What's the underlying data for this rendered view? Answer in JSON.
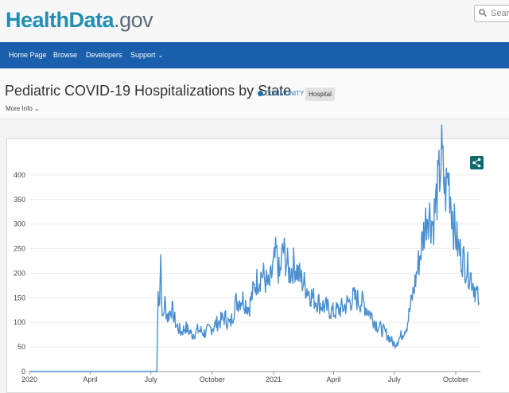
{
  "header": {
    "logo_health": "Health",
    "logo_data": "Data",
    "logo_gov": ".gov",
    "search_placeholder": "Searc"
  },
  "nav": {
    "items": [
      "Home Page",
      "Browse",
      "Developers",
      "Support"
    ]
  },
  "page": {
    "title": "Pediatric COVID-19 Hospitalizations by State",
    "community_label": "COMMUNITY",
    "tag": "Hospital",
    "more_info": "More Info"
  },
  "colors": {
    "nav_bg": "#1a5fab",
    "line": "#4a8fd0",
    "share": "#0e6a6e"
  },
  "chart_data": {
    "type": "line",
    "title": "",
    "xlabel": "",
    "ylabel": "",
    "ylim": [
      0,
      450
    ],
    "yticks": [
      0,
      50,
      100,
      150,
      200,
      250,
      300,
      350,
      400
    ],
    "xticks": [
      "2020",
      "April",
      "July",
      "October",
      "2021",
      "April",
      "July",
      "October"
    ],
    "grid": true,
    "series": [
      {
        "values_by_date": [
          [
            "2020-01-01",
            0
          ],
          [
            "2020-07-10",
            0
          ],
          [
            "2020-07-12",
            160
          ],
          [
            "2020-07-14",
            150
          ],
          [
            "2020-07-16",
            238
          ],
          [
            "2020-07-18",
            100
          ],
          [
            "2020-07-22",
            140
          ],
          [
            "2020-07-26",
            110
          ],
          [
            "2020-08-01",
            130
          ],
          [
            "2020-08-08",
            95
          ],
          [
            "2020-08-15",
            80
          ],
          [
            "2020-08-22",
            90
          ],
          [
            "2020-09-01",
            75
          ],
          [
            "2020-09-10",
            85
          ],
          [
            "2020-09-20",
            78
          ],
          [
            "2020-10-01",
            90
          ],
          [
            "2020-10-10",
            100
          ],
          [
            "2020-10-20",
            110
          ],
          [
            "2020-10-28",
            95
          ],
          [
            "2020-11-05",
            140
          ],
          [
            "2020-11-15",
            150
          ],
          [
            "2020-11-25",
            130
          ],
          [
            "2020-12-05",
            180
          ],
          [
            "2020-12-15",
            200
          ],
          [
            "2020-12-25",
            170
          ],
          [
            "2021-01-05",
            240
          ],
          [
            "2021-01-10",
            190
          ],
          [
            "2021-01-15",
            250
          ],
          [
            "2021-01-25",
            200
          ],
          [
            "2021-02-01",
            220
          ],
          [
            "2021-02-10",
            190
          ],
          [
            "2021-02-20",
            170
          ],
          [
            "2021-03-01",
            150
          ],
          [
            "2021-03-15",
            135
          ],
          [
            "2021-04-01",
            120
          ],
          [
            "2021-04-15",
            130
          ],
          [
            "2021-05-01",
            150
          ],
          [
            "2021-05-15",
            140
          ],
          [
            "2021-05-25",
            120
          ],
          [
            "2021-06-05",
            95
          ],
          [
            "2021-06-20",
            75
          ],
          [
            "2021-07-01",
            55
          ],
          [
            "2021-07-10",
            70
          ],
          [
            "2021-07-20",
            95
          ],
          [
            "2021-08-01",
            180
          ],
          [
            "2021-08-10",
            250
          ],
          [
            "2021-08-20",
            330
          ],
          [
            "2021-08-28",
            300
          ],
          [
            "2021-09-05",
            380
          ],
          [
            "2021-09-10",
            440
          ],
          [
            "2021-09-15",
            360
          ],
          [
            "2021-09-20",
            400
          ],
          [
            "2021-09-28",
            300
          ],
          [
            "2021-10-05",
            250
          ],
          [
            "2021-10-15",
            220
          ],
          [
            "2021-10-25",
            190
          ],
          [
            "2021-11-01",
            160
          ],
          [
            "2021-11-05",
            140
          ]
        ]
      }
    ]
  }
}
